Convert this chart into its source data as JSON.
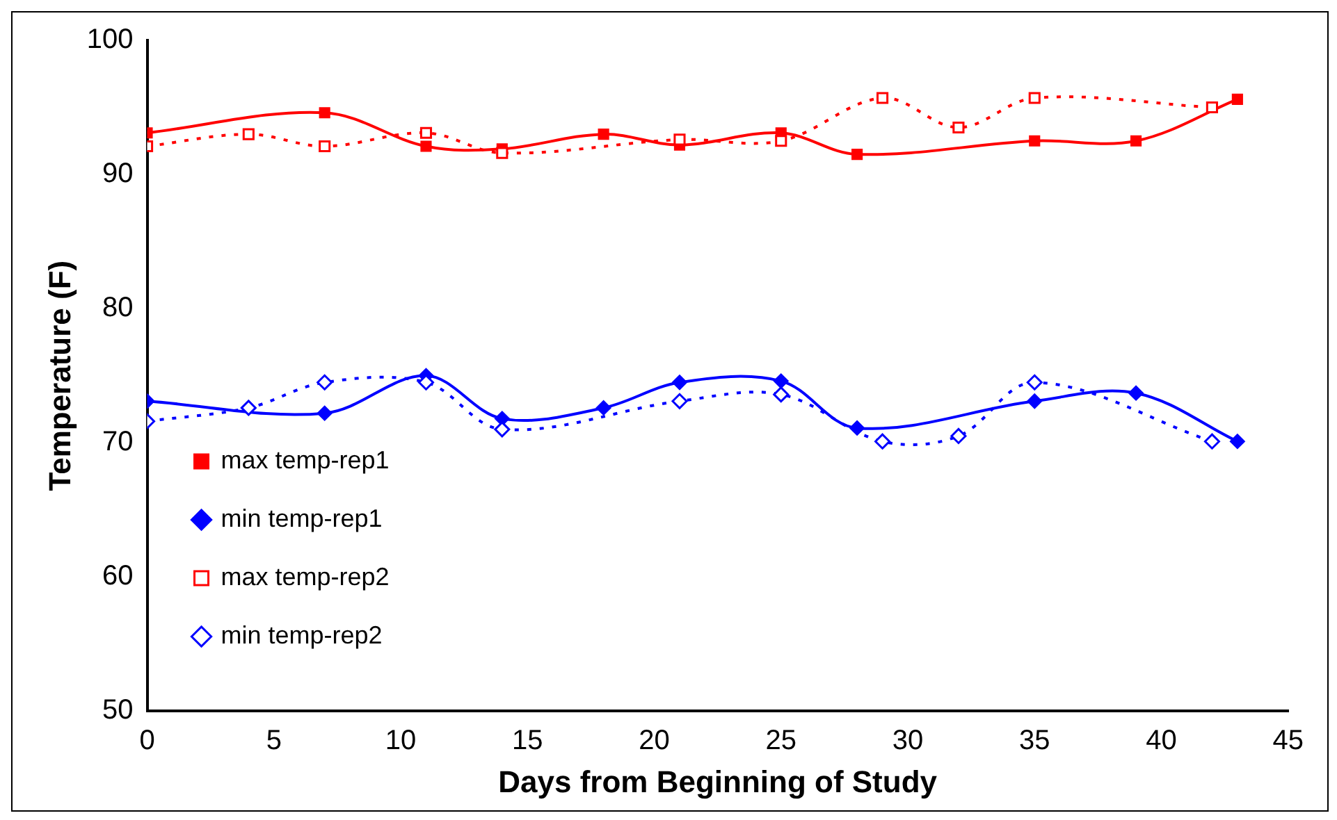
{
  "chart_data": {
    "type": "line",
    "xlabel": "Days from Beginning of Study",
    "ylabel": "Temperature (F)",
    "xlim": [
      0,
      45
    ],
    "xticks": [
      0,
      5,
      10,
      15,
      20,
      25,
      30,
      35,
      40,
      45
    ],
    "ylim": [
      50,
      100
    ],
    "yticks": [
      50,
      60,
      70,
      80,
      90,
      100
    ],
    "grid": false,
    "legend": "left",
    "series": [
      {
        "name": "max temp-rep1",
        "color": "#ff0000",
        "marker": "square",
        "line_style": "solid",
        "x": [
          0,
          7,
          11,
          14,
          18,
          21,
          25,
          28,
          35,
          39,
          43
        ],
        "values": [
          93.1,
          94.6,
          92.1,
          91.9,
          93.0,
          92.2,
          93.1,
          91.5,
          92.5,
          92.5,
          95.6
        ]
      },
      {
        "name": "min temp-rep1",
        "color": "#0000ff",
        "marker": "diamond",
        "line_style": "solid",
        "x": [
          0,
          7,
          11,
          14,
          18,
          21,
          25,
          28,
          35,
          39,
          43
        ],
        "values": [
          73.1,
          72.2,
          75.0,
          71.8,
          72.6,
          74.5,
          74.6,
          71.1,
          73.1,
          73.7,
          70.1
        ]
      },
      {
        "name": "max temp-rep2",
        "color": "#ff0000",
        "marker": "square",
        "line_style": "dotted",
        "x": [
          0,
          4,
          7,
          11,
          14,
          21,
          25,
          29,
          32,
          35,
          42
        ],
        "values": [
          92.1,
          93.0,
          92.1,
          93.1,
          91.6,
          92.6,
          92.5,
          95.7,
          93.5,
          95.7,
          95.0
        ]
      },
      {
        "name": "min temp-rep2",
        "color": "#0000ff",
        "marker": "diamond",
        "line_style": "dotted",
        "x": [
          0,
          4,
          7,
          11,
          14,
          21,
          25,
          29,
          32,
          35,
          42
        ],
        "values": [
          71.6,
          72.6,
          74.5,
          74.5,
          71.0,
          73.1,
          73.6,
          70.1,
          70.5,
          74.5,
          70.1
        ]
      }
    ]
  }
}
